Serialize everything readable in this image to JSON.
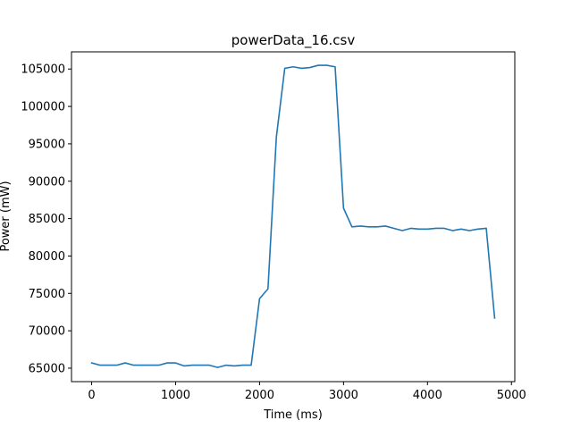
{
  "chart_data": {
    "type": "line",
    "title": "powerData_16.csv",
    "xlabel": "Time (ms)",
    "ylabel": "Power (mW)",
    "xlim": [
      -240,
      5040
    ],
    "ylim": [
      63200,
      107300
    ],
    "xticks": [
      0,
      1000,
      2000,
      3000,
      4000,
      5000
    ],
    "yticks": [
      65000,
      70000,
      75000,
      80000,
      85000,
      90000,
      95000,
      100000,
      105000
    ],
    "grid": false,
    "line_color": "#1f77b4",
    "series": [
      {
        "x": [
          0,
          100,
          200,
          300,
          400,
          500,
          600,
          700,
          800,
          900,
          1000,
          1100,
          1200,
          1300,
          1400,
          1500,
          1600,
          1700,
          1800,
          1900,
          2000,
          2100,
          2200,
          2300,
          2400,
          2500,
          2600,
          2700,
          2800,
          2900,
          3000,
          3100,
          3200,
          3300,
          3400,
          3500,
          3600,
          3700,
          3800,
          3900,
          4000,
          4100,
          4200,
          4300,
          4400,
          4500,
          4600,
          4700,
          4800
        ],
        "values": [
          65700,
          65400,
          65400,
          65400,
          65700,
          65400,
          65400,
          65400,
          65400,
          65700,
          65700,
          65300,
          65400,
          65400,
          65400,
          65100,
          65400,
          65300,
          65400,
          65400,
          74300,
          75600,
          95900,
          105100,
          105300,
          105100,
          105200,
          105500,
          105500,
          105300,
          86400,
          83900,
          84000,
          83900,
          83900,
          84000,
          83700,
          83400,
          83700,
          83600,
          83600,
          83700,
          83700,
          83400,
          83600,
          83400,
          83600,
          83700,
          71700
        ]
      }
    ]
  }
}
